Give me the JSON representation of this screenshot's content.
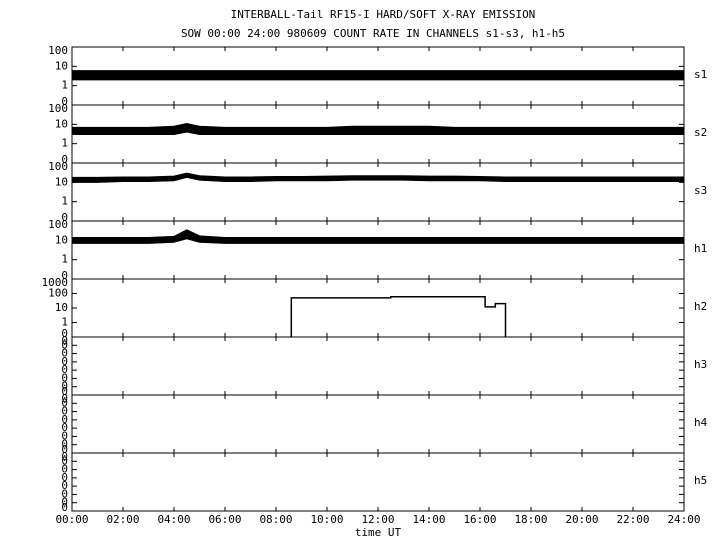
{
  "chart_data": [
    {
      "type": "line",
      "title": "INTERBALL-Tail RF15-I HARD/SOFT X-RAY EMISSION",
      "subtitle": "SOW 00:00 24:00 980609  COUNT RATE IN CHANNELS s1-s3, h1-h5",
      "label": "s1",
      "yscale": "log",
      "ylim": [
        0.1,
        100
      ],
      "yticks": [
        100,
        10,
        1,
        {
          "value": 0.1,
          "label": "0"
        }
      ],
      "x": [
        0,
        1,
        2,
        3,
        4,
        4.5,
        5,
        6,
        7,
        8,
        9,
        10,
        11,
        12,
        13,
        14,
        15,
        16,
        17,
        18,
        19,
        20,
        21,
        22,
        23,
        24
      ],
      "lower": [
        2,
        2,
        2,
        2,
        2,
        2,
        2,
        2,
        2,
        2,
        2,
        2,
        2,
        2,
        2,
        2,
        2,
        2,
        2,
        2,
        2,
        2,
        2,
        2,
        2,
        2
      ],
      "upper": [
        6,
        6,
        6,
        6,
        6,
        6,
        6,
        6,
        6,
        6,
        6,
        6,
        6,
        6,
        6,
        6,
        6,
        6,
        6,
        6,
        6,
        6,
        6,
        6,
        6,
        6
      ],
      "color": "#000000"
    },
    {
      "type": "line",
      "label": "s2",
      "yscale": "log",
      "ylim": [
        0.1,
        100
      ],
      "yticks": [
        100,
        10,
        1,
        {
          "value": 0.1,
          "label": "0"
        }
      ],
      "x": [
        0,
        1,
        2,
        3,
        4,
        4.5,
        5,
        6,
        7,
        8,
        9,
        10,
        11,
        12,
        13,
        14,
        15,
        16,
        17,
        18,
        19,
        20,
        21,
        22,
        23,
        24
      ],
      "lower": [
        3,
        3,
        3,
        3,
        3,
        4,
        3,
        3,
        3,
        3,
        3,
        3,
        3,
        3,
        3,
        3,
        3,
        3,
        3,
        3,
        3,
        3,
        3,
        3,
        3,
        3
      ],
      "upper": [
        7,
        7,
        7,
        7,
        8,
        11,
        8,
        7,
        7,
        7,
        7,
        7,
        8,
        8,
        8,
        8,
        7,
        7,
        7,
        7,
        7,
        7,
        7,
        7,
        7,
        7
      ],
      "color": "#000000"
    },
    {
      "type": "line",
      "label": "s3",
      "yscale": "log",
      "ylim": [
        0.1,
        100
      ],
      "yticks": [
        100,
        10,
        1,
        {
          "value": 0.1,
          "label": "0"
        }
      ],
      "x": [
        0,
        1,
        2,
        3,
        4,
        4.5,
        5,
        6,
        7,
        8,
        9,
        10,
        11,
        12,
        13,
        14,
        15,
        16,
        17,
        18,
        19,
        20,
        21,
        22,
        23,
        24
      ],
      "lower": [
        10,
        10,
        11,
        11,
        12,
        18,
        13,
        11,
        11,
        12,
        12,
        12,
        13,
        13,
        13,
        12,
        12,
        12,
        11,
        11,
        11,
        11,
        11,
        11,
        11,
        11
      ],
      "upper": [
        18,
        18,
        19,
        19,
        21,
        30,
        22,
        19,
        19,
        20,
        20,
        21,
        22,
        22,
        22,
        21,
        21,
        20,
        19,
        19,
        19,
        19,
        19,
        19,
        19,
        19
      ],
      "color": "#000000"
    },
    {
      "type": "line",
      "label": "h1",
      "yscale": "log",
      "ylim": [
        0.1,
        100
      ],
      "yticks": [
        100,
        10,
        1,
        {
          "value": 0.1,
          "label": "0"
        }
      ],
      "x": [
        0,
        1,
        2,
        3,
        4,
        4.5,
        5,
        6,
        7,
        8,
        9,
        10,
        11,
        12,
        13,
        14,
        15,
        16,
        17,
        18,
        19,
        20,
        21,
        22,
        23,
        24
      ],
      "lower": [
        7,
        7,
        7,
        7,
        8,
        12,
        8,
        7,
        7,
        7,
        7,
        7,
        7,
        7,
        7,
        7,
        7,
        7,
        7,
        7,
        7,
        7,
        7,
        7,
        7,
        7
      ],
      "upper": [
        14,
        14,
        14,
        14,
        16,
        35,
        17,
        14,
        14,
        14,
        14,
        14,
        14,
        14,
        14,
        14,
        14,
        14,
        14,
        14,
        14,
        14,
        14,
        14,
        14,
        14
      ],
      "color": "#000000"
    },
    {
      "type": "line",
      "label": "h2",
      "yscale": "log",
      "ylim": [
        0.1,
        1000
      ],
      "yticks": [
        1000,
        100,
        10,
        1,
        {
          "value": 0.1,
          "label": "0"
        }
      ],
      "x": [
        8.6,
        8.6,
        12.5,
        12.5,
        16.2,
        16.2,
        16.6,
        16.6,
        17,
        17
      ],
      "values": [
        0.1,
        50,
        50,
        60,
        60,
        12,
        12,
        20,
        20,
        0.1
      ],
      "color": "#000000"
    },
    {
      "type": "line",
      "label": "h3",
      "yscale": "log",
      "ylim": [
        1e-08,
        0.1
      ],
      "yticks": [
        {
          "value": 0.1,
          "label": "0"
        },
        {
          "value": 0.01,
          "label": "0"
        },
        {
          "value": 0.001,
          "label": "0"
        },
        {
          "value": 0.0001,
          "label": "0"
        },
        {
          "value": 1e-05,
          "label": "0"
        },
        {
          "value": 1e-06,
          "label": "0"
        },
        {
          "value": 1e-07,
          "label": "0"
        },
        {
          "value": 1e-08,
          "label": "0"
        }
      ]
    },
    {
      "type": "line",
      "label": "h4",
      "yscale": "log",
      "ylim": [
        1e-08,
        0.1
      ],
      "yticks": [
        {
          "value": 0.1,
          "label": "0"
        },
        {
          "value": 0.01,
          "label": "0"
        },
        {
          "value": 0.001,
          "label": "0"
        },
        {
          "value": 0.0001,
          "label": "0"
        },
        {
          "value": 1e-05,
          "label": "0"
        },
        {
          "value": 1e-06,
          "label": "0"
        },
        {
          "value": 1e-07,
          "label": "0"
        },
        {
          "value": 1e-08,
          "label": "0"
        }
      ]
    },
    {
      "type": "line",
      "label": "h5",
      "yscale": "log",
      "ylim": [
        1e-08,
        0.1
      ],
      "yticks": [
        {
          "value": 0.1,
          "label": "0"
        },
        {
          "value": 0.01,
          "label": "0"
        },
        {
          "value": 0.001,
          "label": "0"
        },
        {
          "value": 0.0001,
          "label": "0"
        },
        {
          "value": 1e-05,
          "label": "0"
        },
        {
          "value": 1e-06,
          "label": "0"
        },
        {
          "value": 1e-07,
          "label": "0"
        },
        {
          "value": 1e-08,
          "label": "0"
        }
      ],
      "xlabel": "time UT",
      "xlim": [
        0,
        24
      ],
      "xticks": [
        {
          "value": 0,
          "label": "00:00"
        },
        {
          "value": 2,
          "label": "02:00"
        },
        {
          "value": 4,
          "label": "04:00"
        },
        {
          "value": 6,
          "label": "06:00"
        },
        {
          "value": 8,
          "label": "08:00"
        },
        {
          "value": 10,
          "label": "10:00"
        },
        {
          "value": 12,
          "label": "12:00"
        },
        {
          "value": 14,
          "label": "14:00"
        },
        {
          "value": 16,
          "label": "16:00"
        },
        {
          "value": 18,
          "label": "18:00"
        },
        {
          "value": 20,
          "label": "20:00"
        },
        {
          "value": 22,
          "label": "22:00"
        },
        {
          "value": 24,
          "label": "24:00"
        }
      ]
    }
  ]
}
